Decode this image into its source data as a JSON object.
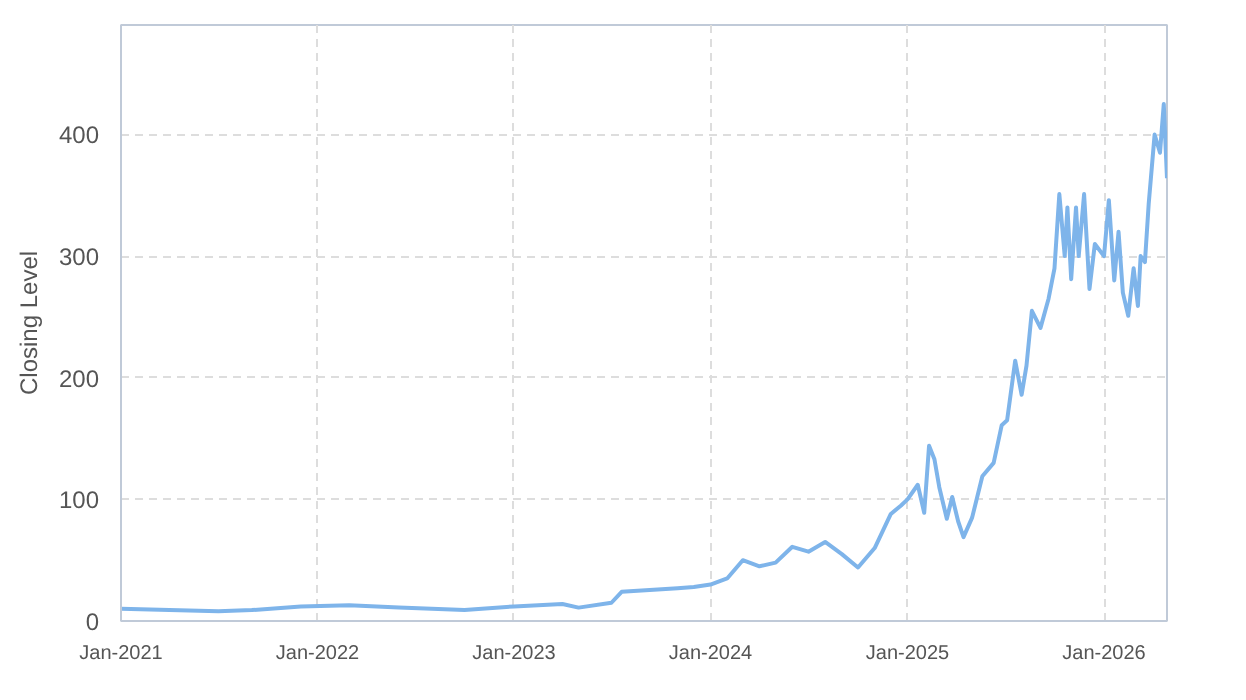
{
  "chart_data": {
    "type": "line",
    "ylabel": "Closing Level",
    "xlim": [
      "2021-01-01",
      "2026-04-28"
    ],
    "ylim": [
      0,
      490
    ],
    "xticks": [
      {
        "value": "2021-01-01",
        "label": "Jan-2021"
      },
      {
        "value": "2022-01-01",
        "label": "Jan-2022"
      },
      {
        "value": "2023-01-01",
        "label": "Jan-2023"
      },
      {
        "value": "2024-01-01",
        "label": "Jan-2024"
      },
      {
        "value": "2025-01-01",
        "label": "Jan-2025"
      },
      {
        "value": "2026-01-01",
        "label": "Jan-2026"
      }
    ],
    "yticks": [
      0,
      100,
      200,
      300,
      400
    ],
    "grid": true,
    "x": [
      "2021-01-01",
      "2021-04-01",
      "2021-07-01",
      "2021-09-01",
      "2021-12-01",
      "2022-03-01",
      "2022-06-01",
      "2022-10-01",
      "2023-01-01",
      "2023-04-01",
      "2023-05-01",
      "2023-07-01",
      "2023-07-20",
      "2023-11-01",
      "2023-12-01",
      "2024-01-01",
      "2024-02-01",
      "2024-03-01",
      "2024-04-01",
      "2024-05-01",
      "2024-06-01",
      "2024-07-01",
      "2024-08-01",
      "2024-09-01",
      "2024-10-01",
      "2024-11-01",
      "2024-12-01",
      "2024-12-20",
      "2025-01-01",
      "2025-01-20",
      "2025-02-01",
      "2025-02-10",
      "2025-02-20",
      "2025-03-01",
      "2025-03-15",
      "2025-03-25",
      "2025-04-05",
      "2025-04-15",
      "2025-05-01",
      "2025-05-20",
      "2025-06-10",
      "2025-06-25",
      "2025-07-05",
      "2025-07-20",
      "2025-08-01",
      "2025-08-10",
      "2025-08-20",
      "2025-09-05",
      "2025-09-20",
      "2025-10-01",
      "2025-10-10",
      "2025-10-20",
      "2025-10-25",
      "2025-11-01",
      "2025-11-10",
      "2025-11-15",
      "2025-11-25",
      "2025-12-05",
      "2025-12-15",
      "2026-01-01",
      "2026-01-10",
      "2026-01-20",
      "2026-01-28",
      "2026-02-05",
      "2026-02-15",
      "2026-02-25",
      "2026-03-05",
      "2026-03-10",
      "2026-03-18",
      "2026-03-25",
      "2026-04-05",
      "2026-04-15",
      "2026-04-22",
      "2026-04-28"
    ],
    "series": [
      {
        "color": "#7eb4ea",
        "values": [
          10,
          9,
          8,
          9,
          12,
          13,
          11,
          9,
          12,
          14,
          11,
          15,
          24,
          27,
          28,
          30,
          35,
          50,
          45,
          48,
          61,
          57,
          65,
          55,
          44,
          60,
          88,
          95,
          100,
          112,
          89,
          144,
          133,
          110,
          84,
          102,
          82,
          69,
          85,
          119,
          130,
          161,
          165,
          214,
          186,
          210,
          255,
          241,
          265,
          290,
          351,
          300,
          340,
          281,
          340,
          300,
          351,
          273,
          310,
          300,
          346,
          280,
          320,
          270,
          251,
          290,
          259,
          300,
          295,
          343,
          400,
          385,
          425,
          364
        ]
      }
    ]
  }
}
